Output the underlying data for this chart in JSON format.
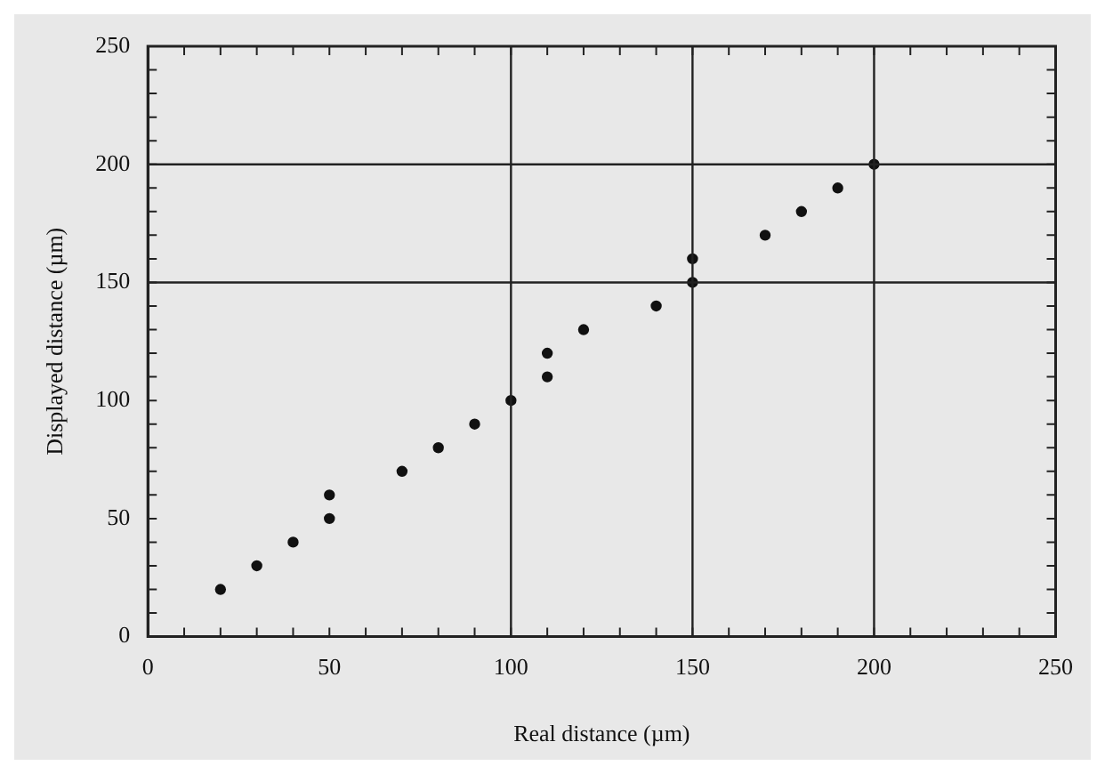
{
  "chart_data": {
    "type": "scatter",
    "xlabel": "Real distance (µm)",
    "ylabel": "Displayed distance (µm)",
    "x": [
      20,
      30,
      40,
      50,
      50,
      70,
      80,
      90,
      100,
      110,
      110,
      120,
      140,
      150,
      150,
      170,
      180,
      190,
      200
    ],
    "series": [
      {
        "color": "#111111",
        "values": [
          20,
          30,
          40,
          50,
          60,
          70,
          80,
          90,
          100,
          110,
          120,
          130,
          140,
          150,
          160,
          170,
          180,
          190,
          200
        ]
      }
    ],
    "xlim": [
      0,
      250
    ],
    "ylim": [
      0,
      250
    ],
    "xticks": [
      0,
      50,
      100,
      150,
      200,
      250
    ],
    "yticks": [
      0,
      50,
      100,
      150,
      200,
      250
    ],
    "ref_lines": [
      {
        "axis": "x",
        "value": 100
      },
      {
        "axis": "x",
        "value": 150
      },
      {
        "axis": "x",
        "value": 200
      },
      {
        "axis": "y",
        "value": 150
      },
      {
        "axis": "y",
        "value": 200
      }
    ],
    "marker": "circle",
    "grid": false,
    "legend": false
  }
}
